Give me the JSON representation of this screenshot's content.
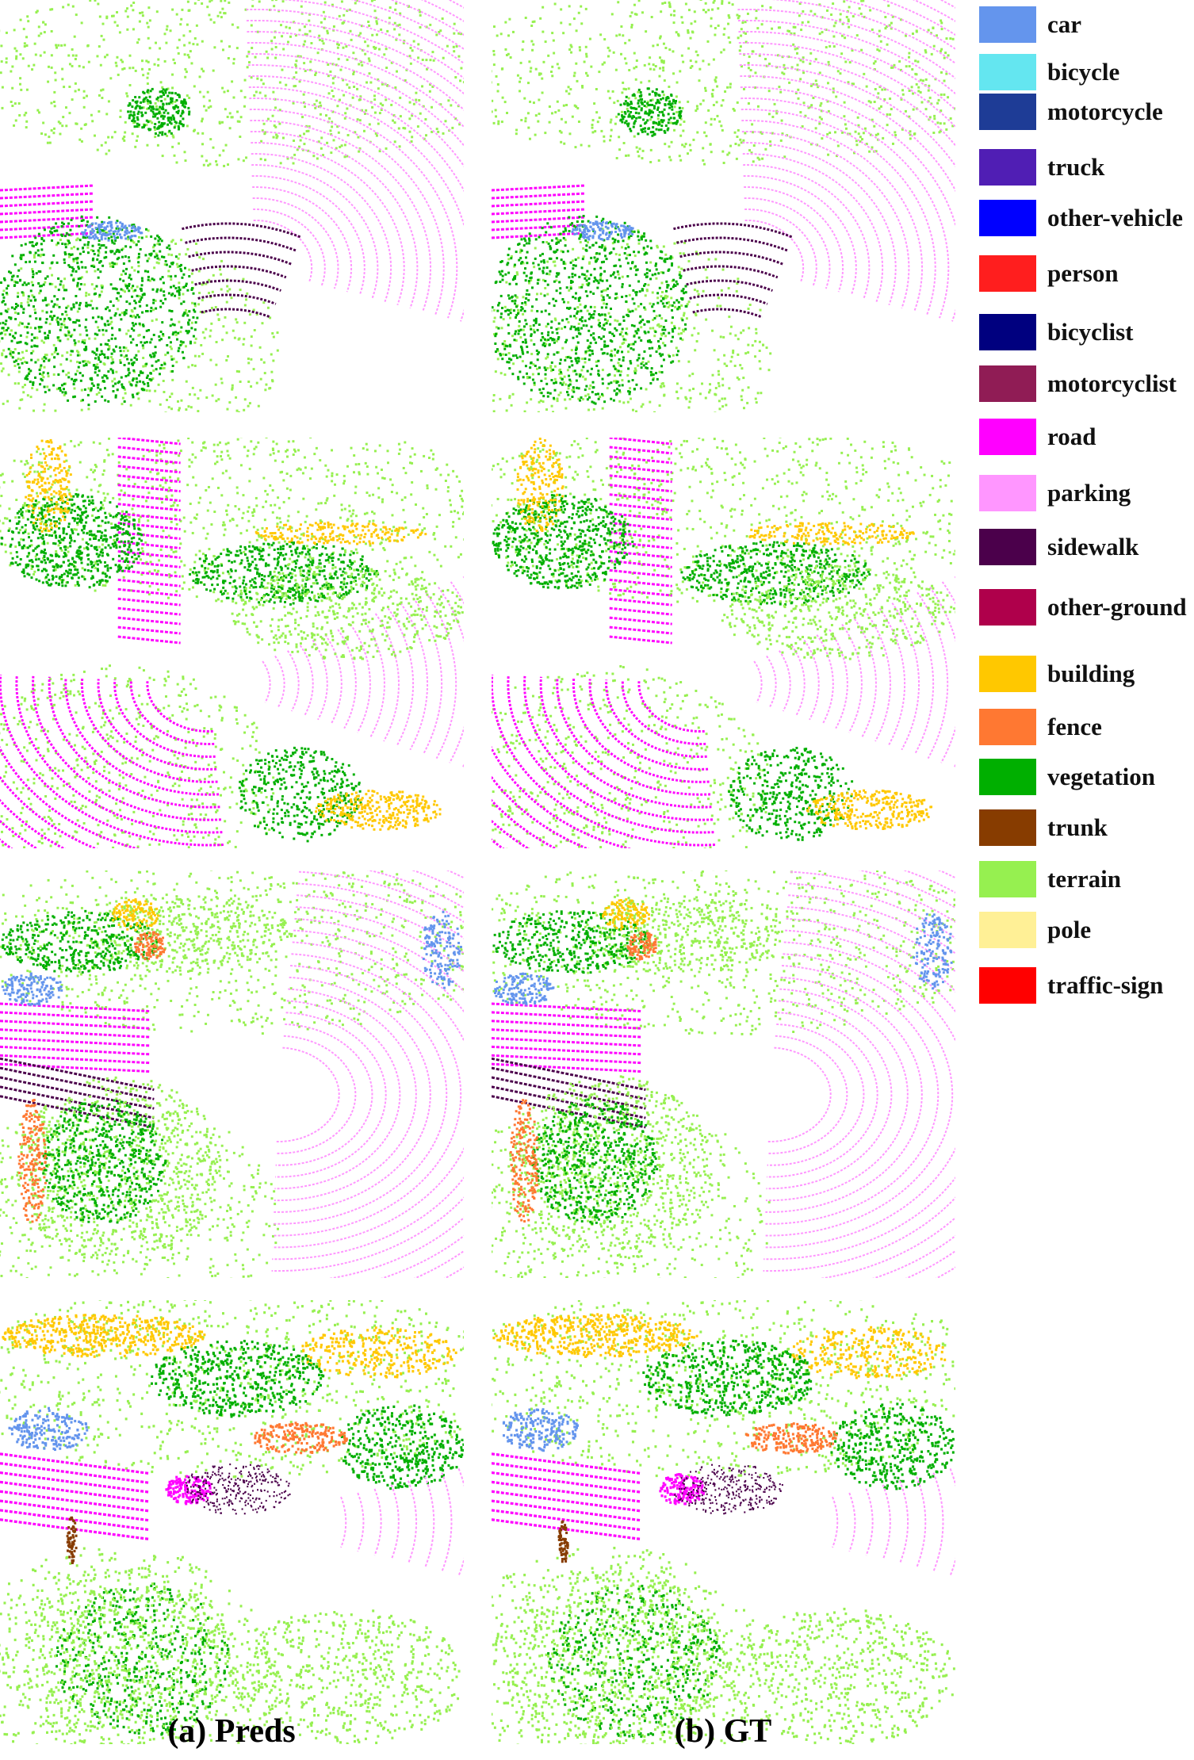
{
  "captions": {
    "preds": "(a) Preds",
    "gt": "(b) GT"
  },
  "legend": [
    {
      "label": "car",
      "color": "#6495ED"
    },
    {
      "label": "bicycle",
      "color": "#64E6F0"
    },
    {
      "label": "motorcycle",
      "color": "#1E3C96"
    },
    {
      "label": "truck",
      "color": "#501EB4"
    },
    {
      "label": "other-vehicle",
      "color": "#0000FF"
    },
    {
      "label": "person",
      "color": "#FF1E1E"
    },
    {
      "label": "bicyclist",
      "color": "#00007F"
    },
    {
      "label": "motorcyclist",
      "color": "#901C55"
    },
    {
      "label": "road",
      "color": "#FF00FF"
    },
    {
      "label": "parking",
      "color": "#FF96FF"
    },
    {
      "label": "sidewalk",
      "color": "#4B004B"
    },
    {
      "label": "other-ground",
      "color": "#AF004B"
    },
    {
      "label": "building",
      "color": "#FFC800"
    },
    {
      "label": "fence",
      "color": "#FF7832"
    },
    {
      "label": "vegetation",
      "color": "#00AF00"
    },
    {
      "label": "trunk",
      "color": "#873C00"
    },
    {
      "label": "terrain",
      "color": "#96F050"
    },
    {
      "label": "pole",
      "color": "#FFF096"
    },
    {
      "label": "traffic-sign",
      "color": "#FF0000"
    }
  ]
}
